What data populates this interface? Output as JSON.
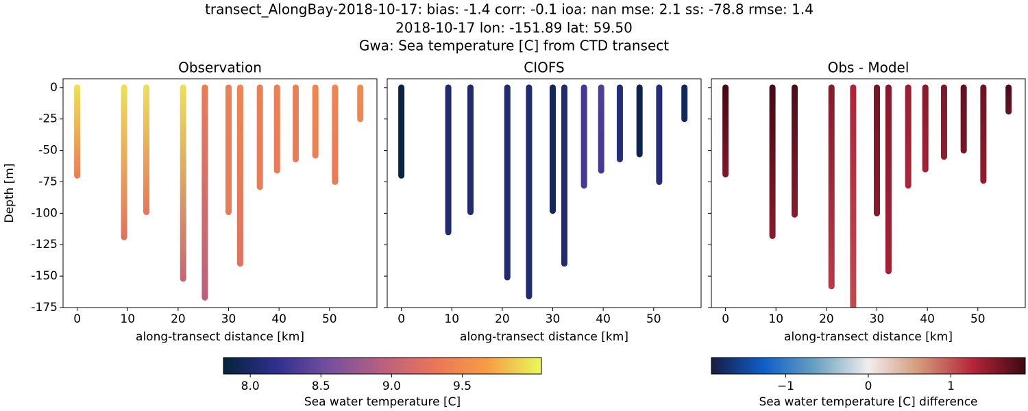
{
  "title": [
    "transect_AlongBay-2018-10-17: bias: -1.4  corr: -0.1  ioa: nan  mse: 2.1  ss: -78.8  rmse: 1.4",
    "2018-10-17 lon: -151.89 lat: 59.50",
    "Gwa: Sea temperature [C] from CTD transect"
  ],
  "chart_data": [
    {
      "type": "profiles",
      "title": "Observation",
      "xlabel": "along-transect distance [km]",
      "ylabel": "Depth [m]",
      "xlim": [
        -2.8,
        59.4
      ],
      "ylim": [
        -175,
        7
      ],
      "xticks": [
        0,
        10,
        20,
        30,
        40,
        50
      ],
      "yticks": [
        0,
        -25,
        -50,
        -75,
        -100,
        -125,
        -150,
        -175
      ],
      "show_ytick_labels": true,
      "colorbar": 0,
      "x": [
        0,
        9.3,
        13.7,
        21,
        25.3,
        30,
        32.3,
        36.2,
        39.6,
        43.3,
        47.2,
        51.1,
        56.1
      ],
      "depth": [
        -70,
        -119,
        -99,
        -152,
        -167,
        -99,
        -140,
        -79,
        -66,
        -57,
        -54,
        -75,
        -25
      ],
      "values_top": [
        9.95,
        9.95,
        9.95,
        9.95,
        9.35,
        9.4,
        9.45,
        9.4,
        9.4,
        9.4,
        9.45,
        9.45,
        9.5
      ],
      "values_bottom": [
        9.4,
        9.25,
        9.3,
        9.05,
        8.95,
        9.35,
        9.25,
        9.35,
        9.35,
        9.35,
        9.4,
        9.35,
        9.45
      ]
    },
    {
      "type": "profiles",
      "title": "CIOFS",
      "xlabel": "along-transect distance [km]",
      "xlim": [
        -2.8,
        59.4
      ],
      "ylim": [
        -175,
        7
      ],
      "xticks": [
        0,
        10,
        20,
        30,
        40,
        50
      ],
      "yticks": [
        0,
        -25,
        -50,
        -75,
        -100,
        -125,
        -150,
        -175
      ],
      "show_ytick_labels": false,
      "colorbar": 0,
      "x": [
        0,
        9.3,
        13.7,
        21,
        25.3,
        30,
        32.3,
        36.2,
        39.6,
        43.3,
        47.2,
        51.1,
        56.1
      ],
      "depth": [
        -70,
        -115,
        -99,
        -151,
        -166,
        -98,
        -140,
        -78,
        -66,
        -57,
        -53,
        -75,
        -25
      ],
      "values_top": [
        7.85,
        8.05,
        8.05,
        8.05,
        8.05,
        7.95,
        8.05,
        8.3,
        8.35,
        8.1,
        7.9,
        8.1,
        7.95
      ],
      "values_bottom": [
        7.85,
        8.05,
        8.05,
        8.05,
        8.05,
        7.95,
        8.05,
        8.3,
        8.3,
        8.1,
        7.9,
        8.1,
        7.95
      ]
    },
    {
      "type": "profiles",
      "title": "Obs - Model",
      "xlabel": "along-transect distance [km]",
      "xlim": [
        -2.8,
        59.4
      ],
      "ylim": [
        -175,
        7
      ],
      "xticks": [
        0,
        10,
        20,
        30,
        40,
        50
      ],
      "yticks": [
        0,
        -25,
        -50,
        -75,
        -100,
        -125,
        -150,
        -175
      ],
      "show_ytick_labels": false,
      "colorbar": 1,
      "x": [
        0,
        9.3,
        13.7,
        21,
        25.3,
        30,
        32.3,
        36.2,
        39.6,
        43.3,
        47.2,
        51.1,
        56.1
      ],
      "depth": [
        -69,
        -118,
        -101,
        -158,
        -180,
        -100,
        -146,
        -78,
        -65,
        -55,
        -50,
        -74,
        -19
      ],
      "values_top": [
        1.85,
        1.85,
        1.8,
        1.5,
        1.3,
        1.6,
        1.5,
        1.4,
        1.5,
        1.55,
        1.7,
        1.65,
        1.8
      ],
      "values_bottom": [
        1.55,
        1.5,
        1.5,
        1.15,
        1.05,
        1.5,
        1.35,
        1.3,
        1.35,
        1.45,
        1.6,
        1.45,
        1.7
      ]
    }
  ],
  "colorbars": [
    {
      "label": "Sea water temperature [C]",
      "lim": [
        7.81,
        10.06
      ],
      "ticks": [
        {
          "value": 8,
          "label": "8.0"
        },
        8.5,
        {
          "value": 9,
          "label": "9.0"
        },
        9.5
      ],
      "colormap": [
        "#04233a",
        "#2f2f8f",
        "#75509e",
        "#b9607f",
        "#ea7659",
        "#f89d45",
        "#e8fa5b"
      ]
    },
    {
      "label": "Sea water temperature [C] difference",
      "lim": [
        -1.9,
        1.9
      ],
      "ticks": [
        {
          "value": -1,
          "label": "−1"
        },
        0,
        1
      ],
      "colormap": [
        "#181c43",
        "#0d5ec8",
        "#6ba1c1",
        "#f1eded",
        "#d39679",
        "#b5243a",
        "#3c0912"
      ]
    }
  ]
}
